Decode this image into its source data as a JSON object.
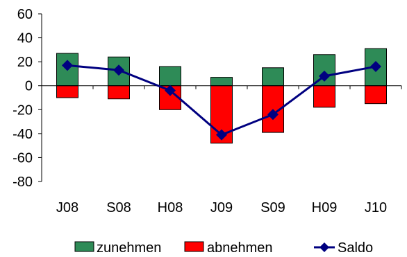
{
  "chart_data": {
    "type": "bar",
    "categories": [
      "J08",
      "S08",
      "H08",
      "J09",
      "S09",
      "H09",
      "J10"
    ],
    "ylim": [
      -80,
      60
    ],
    "yticks": [
      60,
      40,
      20,
      0,
      -20,
      -40,
      -60,
      -80
    ],
    "stacked": true,
    "grid": false,
    "legend_position": "bottom",
    "series": [
      {
        "name": "zunehmen",
        "kind": "bar",
        "color": "#2e8b57",
        "values": [
          27,
          24,
          16,
          7,
          15,
          26,
          31
        ]
      },
      {
        "name": "abnehmen",
        "kind": "bar",
        "color": "#ff0000",
        "values": [
          -10,
          -11,
          -20,
          -48,
          -39,
          -18,
          -15
        ]
      },
      {
        "name": "Saldo",
        "kind": "line",
        "color": "#000080",
        "marker": "diamond",
        "values": [
          17,
          13,
          -4,
          -41,
          -24,
          8,
          16
        ]
      }
    ]
  }
}
